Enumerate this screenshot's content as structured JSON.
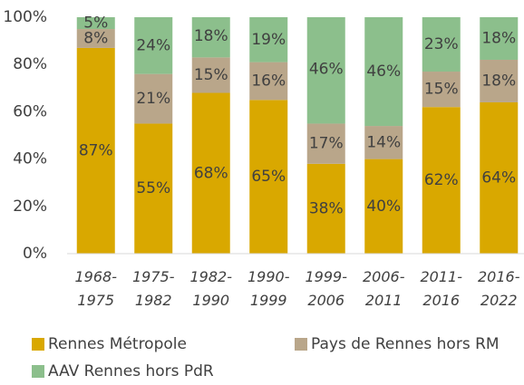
{
  "chart_data": {
    "type": "stacked_bar",
    "categories": [
      "1968-1975",
      "1975-1982",
      "1982-1990",
      "1990-1999",
      "1999-2006",
      "2006-2011",
      "2011-2016",
      "2016-2022"
    ],
    "series": [
      {
        "name": "Rennes Métropole",
        "color": "#d9a800",
        "values": [
          87,
          55,
          68,
          65,
          38,
          40,
          62,
          64
        ],
        "value_labels": [
          "87%",
          "55%",
          "68%",
          "65%",
          "38%",
          "40%",
          "62%",
          "64%"
        ]
      },
      {
        "name": "Pays de Rennes hors RM",
        "color": "#b9a68a",
        "values": [
          8,
          21,
          15,
          16,
          17,
          14,
          15,
          18
        ],
        "value_labels": [
          "8%",
          "21%",
          "15%",
          "16%",
          "17%",
          "14%",
          "15%",
          "18%"
        ]
      },
      {
        "name": "AAV Rennes hors PdR",
        "color": "#8cbf8c",
        "values": [
          5,
          24,
          18,
          19,
          46,
          46,
          23,
          18
        ],
        "value_labels": [
          "5%",
          "24%",
          "18%",
          "19%",
          "46%",
          "46%",
          "23%",
          "18%"
        ]
      }
    ],
    "ylim": [
      0,
      100
    ],
    "yticks": [
      {
        "value": 0,
        "label": "0%"
      },
      {
        "value": 20,
        "label": "20%"
      },
      {
        "value": 40,
        "label": "40%"
      },
      {
        "value": 60,
        "label": "60%"
      },
      {
        "value": 80,
        "label": "80%"
      },
      {
        "value": 100,
        "label": "100%"
      }
    ],
    "legend": "bottom"
  }
}
